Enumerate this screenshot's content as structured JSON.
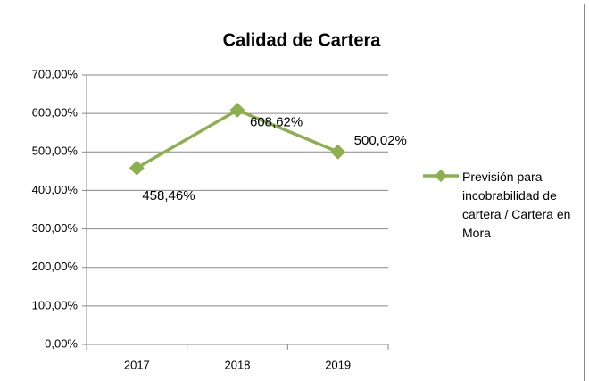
{
  "chart_data": {
    "type": "line",
    "title": "Calidad de Cartera",
    "categories": [
      "2017",
      "2018",
      "2019"
    ],
    "series": [
      {
        "name": "Previsión para incobrabilidad de cartera / Cartera en Mora",
        "color": "#8db04f",
        "values": [
          458.46,
          608.62,
          500.02
        ],
        "value_labels": [
          "458,46%",
          "608,62%",
          "500,02%"
        ]
      }
    ],
    "ylim": [
      0,
      700
    ],
    "yticks": [
      {
        "value": 0,
        "label": "0,00%"
      },
      {
        "value": 100,
        "label": "100,00%"
      },
      {
        "value": 200,
        "label": "200,00%"
      },
      {
        "value": 300,
        "label": "300,00%"
      },
      {
        "value": 400,
        "label": "400,00%"
      },
      {
        "value": 500,
        "label": "500,00%"
      },
      {
        "value": 600,
        "label": "600,00%"
      },
      {
        "value": 700,
        "label": "700,00%"
      }
    ],
    "grid": true,
    "legend": "right"
  }
}
